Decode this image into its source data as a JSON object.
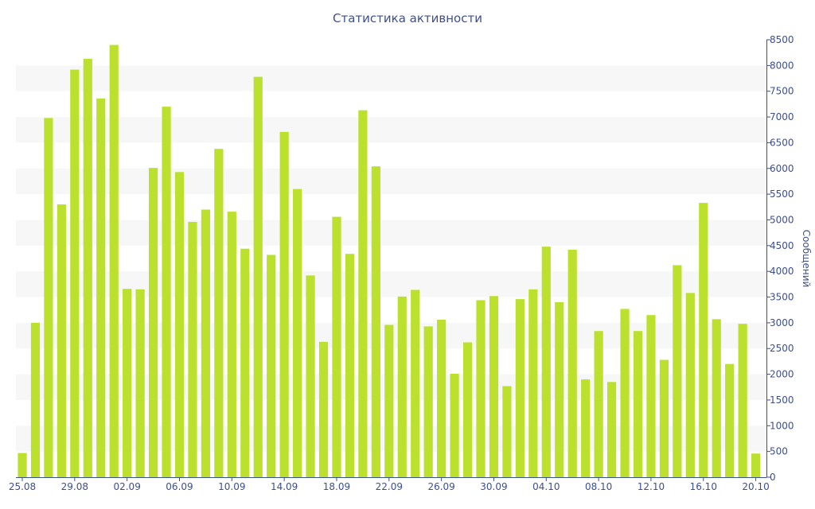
{
  "chart_data": {
    "type": "bar",
    "title": "Статистика активности",
    "ylabel": "Сообщений",
    "xlabel": "",
    "ylim": [
      0,
      8500
    ],
    "y_ticks": [
      0,
      500,
      1000,
      1500,
      2000,
      2500,
      3000,
      3500,
      4000,
      4500,
      5000,
      5500,
      6000,
      6500,
      7000,
      7500,
      8000,
      8500
    ],
    "y_axis_side": "right",
    "grid": "alternating horizontal bands",
    "x_tick_labels": [
      "25.08",
      "29.08",
      "02.09",
      "06.09",
      "10.09",
      "14.09",
      "18.09",
      "22.09",
      "26.09",
      "30.09",
      "04.10",
      "08.10",
      "12.10",
      "16.10",
      "20.10"
    ],
    "x_tick_every": 4,
    "categories": [
      "25.08",
      "26.08",
      "27.08",
      "28.08",
      "29.08",
      "30.08",
      "31.08",
      "01.09",
      "02.09",
      "03.09",
      "04.09",
      "05.09",
      "06.09",
      "07.09",
      "08.09",
      "09.09",
      "10.09",
      "11.09",
      "12.09",
      "13.09",
      "14.09",
      "15.09",
      "16.09",
      "17.09",
      "18.09",
      "19.09",
      "20.09",
      "21.09",
      "22.09",
      "23.09",
      "24.09",
      "25.09",
      "26.09",
      "27.09",
      "28.09",
      "29.09",
      "30.09",
      "01.10",
      "02.10",
      "03.10",
      "04.10",
      "05.10",
      "06.10",
      "07.10",
      "08.10",
      "09.10",
      "10.10",
      "11.10",
      "12.10",
      "13.10",
      "14.10",
      "15.10",
      "16.10",
      "17.10",
      "18.10",
      "19.10",
      "20.10"
    ],
    "values": [
      470,
      3000,
      6980,
      5300,
      7920,
      8130,
      7360,
      8400,
      3660,
      3650,
      6010,
      7200,
      5930,
      4960,
      5200,
      6380,
      5160,
      4440,
      7780,
      4320,
      6710,
      5600,
      3920,
      2630,
      5060,
      4340,
      7130,
      6040,
      2960,
      3510,
      3640,
      2930,
      3060,
      2010,
      2620,
      3440,
      3520,
      1770,
      3460,
      3650,
      4480,
      3400,
      4420,
      1900,
      2840,
      1850,
      3270,
      2840,
      3150,
      2280,
      4120,
      3580,
      5330,
      3070,
      2200,
      2980,
      460
    ],
    "bar_color": "#bbe02e",
    "band_color": "#f7f7f7",
    "text_color": "#3d4f8f"
  }
}
